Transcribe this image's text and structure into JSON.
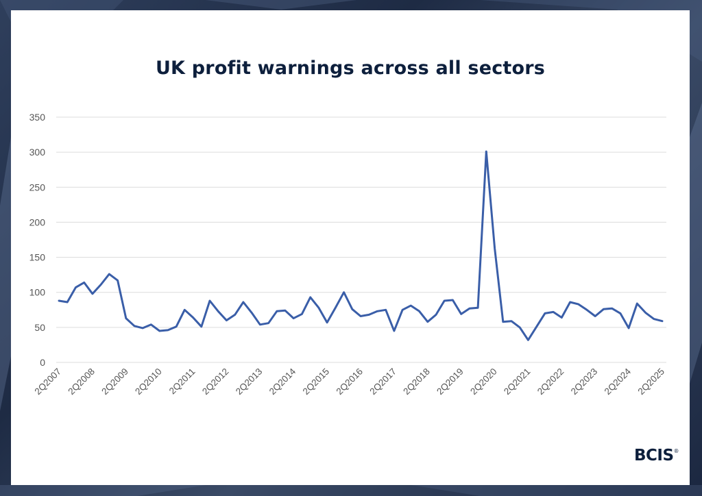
{
  "brand": {
    "logo_text": "BCIS",
    "logo_mark": "®"
  },
  "colors": {
    "line": "#3a5ea8",
    "grid": "#dcdcdc",
    "text": "#555555",
    "title": "#0d1f3c"
  },
  "chart_data": {
    "type": "line",
    "title": "UK profit warnings across all sectors",
    "xlabel": "",
    "ylabel": "",
    "ylim": [
      0,
      350
    ],
    "yticks": [
      0,
      50,
      100,
      150,
      200,
      250,
      300,
      350
    ],
    "grid": true,
    "legend": "none",
    "x": [
      "2Q2007",
      "3Q2007",
      "4Q2007",
      "1Q2008",
      "2Q2008",
      "3Q2008",
      "4Q2008",
      "1Q2009",
      "2Q2009",
      "3Q2009",
      "4Q2009",
      "1Q2010",
      "2Q2010",
      "3Q2010",
      "4Q2010",
      "1Q2011",
      "2Q2011",
      "3Q2011",
      "4Q2011",
      "1Q2012",
      "2Q2012",
      "3Q2012",
      "4Q2012",
      "1Q2013",
      "2Q2013",
      "3Q2013",
      "4Q2013",
      "1Q2014",
      "2Q2014",
      "3Q2014",
      "4Q2014",
      "1Q2015",
      "2Q2015",
      "3Q2015",
      "4Q2015",
      "1Q2016",
      "2Q2016",
      "3Q2016",
      "4Q2016",
      "1Q2017",
      "2Q2017",
      "3Q2017",
      "4Q2017",
      "1Q2018",
      "2Q2018",
      "3Q2018",
      "4Q2018",
      "1Q2019",
      "2Q2019",
      "3Q2019",
      "4Q2019",
      "1Q2020",
      "2Q2020",
      "3Q2020",
      "4Q2020",
      "1Q2021",
      "2Q2021",
      "3Q2021",
      "4Q2021",
      "1Q2022",
      "2Q2022",
      "3Q2022",
      "4Q2022",
      "1Q2023",
      "2Q2023",
      "3Q2023",
      "4Q2023",
      "1Q2024",
      "2Q2024",
      "3Q2024",
      "4Q2024",
      "1Q2025",
      "2Q2025"
    ],
    "tick_labels": [
      "2Q2007",
      "2Q2008",
      "2Q2009",
      "2Q2010",
      "2Q2011",
      "2Q2012",
      "2Q2013",
      "2Q2014",
      "2Q2015",
      "2Q2016",
      "2Q2017",
      "2Q2018",
      "2Q2019",
      "2Q2020",
      "2Q2021",
      "2Q2022",
      "2Q2023",
      "2Q2024",
      "2Q2025"
    ],
    "series": [
      {
        "values": [
          88,
          86,
          107,
          114,
          98,
          111,
          126,
          117,
          63,
          52,
          49,
          54,
          45,
          46,
          51,
          75,
          64,
          51,
          88,
          73,
          60,
          68,
          86,
          71,
          54,
          56,
          73,
          74,
          63,
          69,
          93,
          78,
          57,
          78,
          100,
          76,
          66,
          68,
          73,
          75,
          45,
          75,
          81,
          73,
          58,
          68,
          88,
          89,
          69,
          77,
          78,
          301,
          163,
          58,
          59,
          50,
          32,
          51,
          70,
          72,
          64,
          86,
          83,
          75,
          66,
          76,
          77,
          70,
          49,
          84,
          71,
          62,
          59
        ]
      }
    ]
  }
}
